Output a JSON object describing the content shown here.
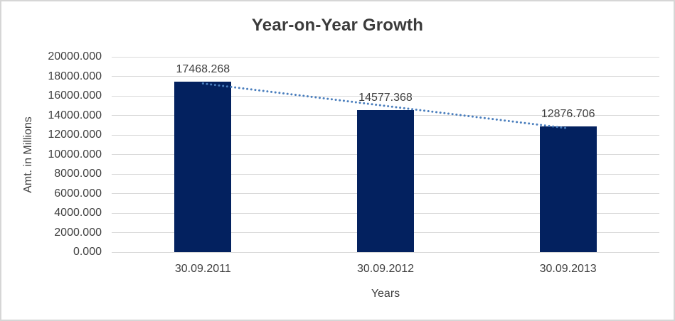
{
  "colors": {
    "bar": "#03215F",
    "trendline": "#4A7EBD",
    "gridline": "#D9D9D9",
    "axis_text": "#404040",
    "title_text": "#3B3B3B",
    "frame_border": "#D6D6D6",
    "background": "#FFFFFF"
  },
  "chart_data": {
    "type": "bar",
    "title": "Year-on-Year Growth",
    "categories": [
      "30.09.2011",
      "30.09.2012",
      "30.09.2013"
    ],
    "values": [
      17468.268,
      14577.368,
      12876.706
    ],
    "value_labels": [
      "17468.268",
      "14577.368",
      "12876.706"
    ],
    "xlabel": "Years",
    "ylabel": "Amt. in Millions",
    "ylim": [
      0,
      20000
    ],
    "ytick_step": 2000,
    "ytick_decimals": 3,
    "grid": true,
    "legend": "none",
    "trendline": {
      "kind": "linear",
      "style": "dotted",
      "color": "#4A7EBD"
    }
  }
}
